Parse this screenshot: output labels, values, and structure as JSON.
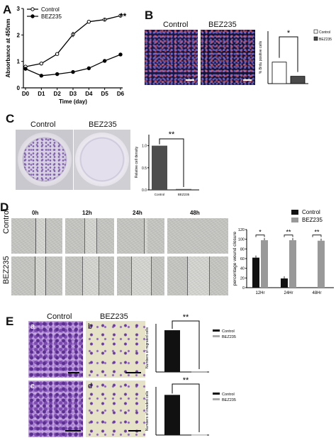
{
  "panels": {
    "a": {
      "letter": "A",
      "chart_data": {
        "type": "line",
        "x": [
          "D0",
          "D1",
          "D2",
          "D3",
          "D4",
          "D5",
          "D6"
        ],
        "xlabel": "Time (day)",
        "ylabel": "Absorbance at 450nm",
        "ylim": [
          0,
          3
        ],
        "yticks": [
          "0",
          "1",
          "2",
          "3"
        ],
        "series": [
          {
            "name": "Control",
            "values": [
              0.8,
              0.92,
              1.28,
              2.02,
              2.5,
              2.58,
              2.73
            ],
            "marker": "circle-open"
          },
          {
            "name": "BEZ235",
            "values": [
              0.72,
              0.46,
              0.52,
              0.6,
              0.74,
              1.02,
              1.26
            ],
            "marker": "circle-filled"
          }
        ],
        "significance": "**",
        "legend": "top-left"
      }
    },
    "b": {
      "letter": "B",
      "image_labels": [
        "Control",
        "BEZ235"
      ],
      "chart_data": {
        "type": "bar",
        "categories": [
          "Control",
          "BEZ235"
        ],
        "ylabel": "% Brdu positive cells",
        "series": [
          {
            "name": "Control",
            "values": [
              8.2,
              2.8
            ]
          }
        ],
        "colors": [
          "#ffffff",
          "#4a4a4a"
        ],
        "ylim": [
          0,
          20
        ],
        "significance": "*",
        "legend_labels": [
          "Control",
          "BEZ235"
        ],
        "legend": "top-right"
      }
    },
    "c": {
      "letter": "C",
      "image_labels": [
        "Control",
        "BEZ235"
      ],
      "chart_data": {
        "type": "bar",
        "categories": [
          "Control",
          "BEZ235"
        ],
        "ylabel": "Relative cell density",
        "values": [
          1.0,
          0.02
        ],
        "ylim": [
          0,
          1.25
        ],
        "yticks": [
          "0.0",
          "0.5",
          "1.0"
        ],
        "colors": [
          "#4d4d4d",
          "#4d4d4d"
        ],
        "significance": "**"
      }
    },
    "d": {
      "letter": "D",
      "time_labels": [
        "0h",
        "12h",
        "24h",
        "48h"
      ],
      "row_labels": [
        "Control",
        "BEZ235"
      ],
      "chart_data": {
        "type": "bar",
        "categories": [
          "12Hr",
          "24Hr",
          "48Hr"
        ],
        "ylabel": "percentage wound closure",
        "ylim": [
          0,
          120
        ],
        "yticks": [
          "0",
          "20",
          "40",
          "60",
          "80",
          "100",
          "120"
        ],
        "series": [
          {
            "name": "Control",
            "values": [
              62,
              19,
              0
            ],
            "color": "#111111"
          },
          {
            "name": "BEZ235",
            "values": [
              98,
              98,
              97
            ],
            "color": "#999999"
          }
        ],
        "significance": [
          "*",
          "**",
          "**"
        ],
        "legend": "top-right"
      }
    },
    "e": {
      "letter": "E",
      "column_labels": [
        "Control",
        "BEZ235"
      ],
      "sub_letters": [
        "a",
        "b",
        "c",
        "d"
      ],
      "charts": [
        {
          "type": "bar",
          "categories": [
            "Control",
            "BEZ235"
          ],
          "ylabel": "Numbers of migrated cells",
          "values": [
            520,
            8
          ],
          "ylim": [
            0,
            600
          ],
          "colors": [
            "#111111",
            "#aaaaaa"
          ],
          "significance": "**",
          "legend": "right"
        },
        {
          "type": "bar",
          "categories": [
            "Control",
            "BEZ235"
          ],
          "ylabel": "Numbers of invaded cells",
          "values": [
            500,
            6
          ],
          "ylim": [
            0,
            600
          ],
          "colors": [
            "#111111",
            "#aaaaaa"
          ],
          "significance": "**",
          "legend": "right"
        }
      ]
    }
  }
}
